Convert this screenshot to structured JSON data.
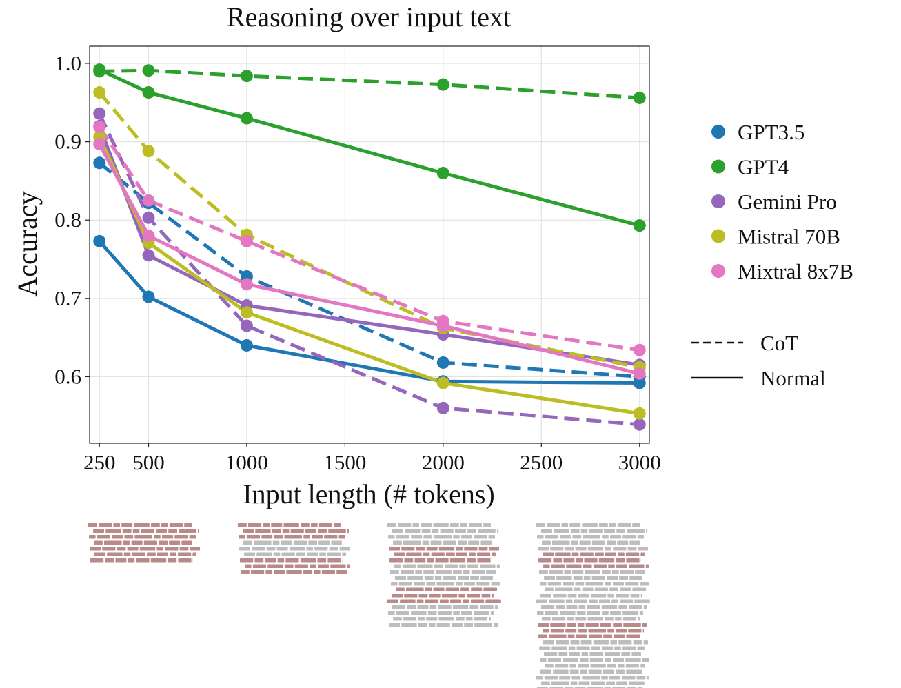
{
  "chart_data": {
    "type": "line",
    "title": "Reasoning over input text",
    "xlabel": "Input length (# tokens)",
    "ylabel": "Accuracy",
    "x": [
      250,
      500,
      1000,
      2000,
      3000
    ],
    "xticks": [
      250,
      500,
      1000,
      1500,
      2000,
      2500,
      3000
    ],
    "yticks": [
      0.6,
      0.7,
      0.8,
      0.9,
      1.0
    ],
    "xtick_labels": [
      "250",
      "500",
      "1000",
      "1500",
      "2000",
      "2500",
      "3000"
    ],
    "ytick_labels": [
      "0.6",
      "0.7",
      "0.8",
      "0.9",
      "1.0"
    ],
    "xlim": [
      200,
      3050
    ],
    "ylim": [
      0.515,
      1.022
    ],
    "grid": true,
    "legend_position": "right",
    "series": [
      {
        "name": "GPT3.5",
        "style": "CoT",
        "color": "#1f77b4",
        "values": [
          0.873,
          0.822,
          0.728,
          0.618,
          0.6
        ]
      },
      {
        "name": "GPT3.5",
        "style": "Normal",
        "color": "#1f77b4",
        "values": [
          0.773,
          0.702,
          0.64,
          0.594,
          0.592
        ]
      },
      {
        "name": "GPT4",
        "style": "CoT",
        "color": "#2ca02c",
        "values": [
          0.99,
          0.991,
          0.984,
          0.973,
          0.956
        ]
      },
      {
        "name": "GPT4",
        "style": "Normal",
        "color": "#2ca02c",
        "values": [
          0.992,
          0.963,
          0.93,
          0.86,
          0.793
        ]
      },
      {
        "name": "Gemini Pro",
        "style": "CoT",
        "color": "#9467bd",
        "values": [
          0.936,
          0.803,
          0.665,
          0.56,
          0.539
        ]
      },
      {
        "name": "Gemini Pro",
        "style": "Normal",
        "color": "#9467bd",
        "values": [
          0.92,
          0.755,
          0.691,
          0.654,
          0.615
        ]
      },
      {
        "name": "Mistral 70B",
        "style": "CoT",
        "color": "#bcbd22",
        "values": [
          0.963,
          0.888,
          0.781,
          0.662,
          0.612
        ]
      },
      {
        "name": "Mistral 70B",
        "style": "Normal",
        "color": "#bcbd22",
        "values": [
          0.906,
          0.771,
          0.682,
          0.592,
          0.553
        ]
      },
      {
        "name": "Mixtral 8x7B",
        "style": "CoT",
        "color": "#e377c2",
        "values": [
          0.919,
          0.825,
          0.773,
          0.671,
          0.634
        ]
      },
      {
        "name": "Mixtral 8x7B",
        "style": "Normal",
        "color": "#e377c2",
        "values": [
          0.897,
          0.78,
          0.718,
          0.665,
          0.604
        ]
      }
    ],
    "legend_models": [
      {
        "name": "GPT3.5",
        "color": "#1f77b4"
      },
      {
        "name": "GPT4",
        "color": "#2ca02c"
      },
      {
        "name": "Gemini Pro",
        "color": "#9467bd"
      },
      {
        "name": "Mistral 70B",
        "color": "#bcbd22"
      },
      {
        "name": "Mixtral 8x7B",
        "color": "#e377c2"
      }
    ],
    "legend_styles": [
      {
        "name": "CoT",
        "dash": "dashed"
      },
      {
        "name": "Normal",
        "dash": "solid"
      }
    ],
    "illustration": {
      "relevant_color": "#b88a8a",
      "padding_color": "#bdbdbd",
      "blocks": [
        {
          "x": 250,
          "rows": [
            "r",
            "r",
            "r",
            "r",
            "r",
            "r",
            "r"
          ]
        },
        {
          "x": 1000,
          "rows": [
            "r",
            "r",
            "r",
            "g",
            "g",
            "g",
            "r",
            "r",
            "r"
          ]
        },
        {
          "x": 2000,
          "rows": [
            "g",
            "g",
            "g",
            "g",
            "r",
            "r",
            "r",
            "g",
            "g",
            "g",
            "g",
            "r",
            "r",
            "r",
            "g",
            "g",
            "g",
            "g"
          ]
        },
        {
          "x": 3000,
          "rows": [
            "g",
            "g",
            "g",
            "g",
            "g",
            "r",
            "r",
            "r",
            "g",
            "g",
            "g",
            "g",
            "g",
            "g",
            "g",
            "g",
            "g",
            "r",
            "r",
            "r",
            "g",
            "g",
            "g",
            "g",
            "g",
            "g",
            "g",
            "g",
            "g"
          ]
        }
      ]
    }
  }
}
